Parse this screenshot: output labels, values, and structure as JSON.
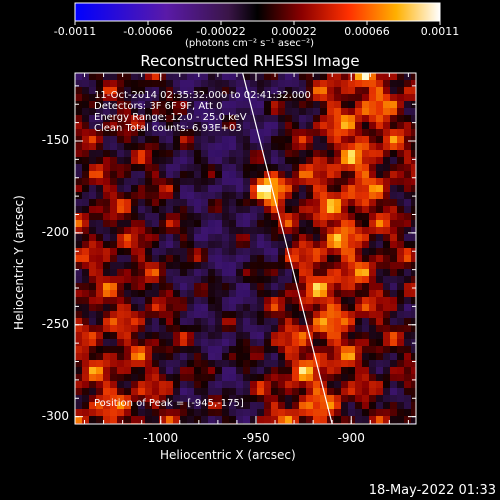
{
  "colorbar": {
    "ticks": [
      "-0.0011",
      "-0.00066",
      "-0.00022",
      "0.00022",
      "0.00066",
      "0.0011"
    ],
    "units": "(photons cm⁻² s⁻¹ asec⁻²)"
  },
  "chart_data": {
    "type": "heatmap",
    "title": "Reconstructed RHESSI Image",
    "xlabel": "Heliocentric X (arcsec)",
    "ylabel": "Heliocentric Y (arcsec)",
    "xlim": [
      -1045,
      -866
    ],
    "ylim": [
      -304,
      -113
    ],
    "xticks": [
      -1000,
      -950,
      -900
    ],
    "xtick_labels": [
      "-1000",
      "-950",
      "-900"
    ],
    "yticks": [
      -150,
      -200,
      -250,
      -300
    ],
    "ytick_labels": [
      "-150",
      "-200",
      "-250",
      "-300"
    ],
    "value_range": [
      -0.0011,
      0.0011
    ],
    "peak": {
      "x": -945,
      "y": -175
    },
    "limb_line": [
      [
        -957,
        -113
      ],
      [
        -910,
        -304
      ]
    ],
    "colormap": "red-temperature"
  },
  "info": {
    "line1": "11-Oct-2014 02:35:32.000 to 02:41:32.000",
    "line2": "Detectors: 3F 6F 9F, Att 0",
    "line3": "Energy Range: 12.0 - 25.0 keV",
    "line4": "Clean    Total counts: 6.93E+03",
    "peak_text": "Position of Peak = [-945,-175]"
  },
  "footer": "18-May-2022 01:33"
}
